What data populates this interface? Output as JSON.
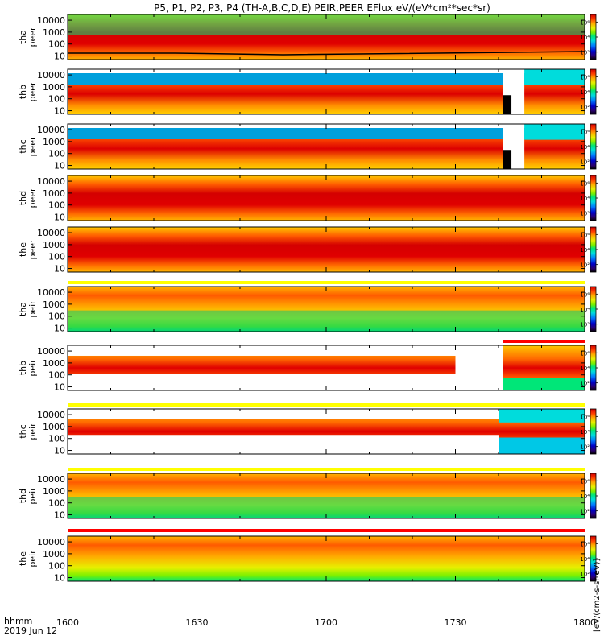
{
  "title": "P5, P1, P2, P3, P4 (TH-A,B,C,D,E) PEIR,PEER EFlux eV/(eV*cm²*sec*sr)",
  "colorbar_unit_label": "[eV/(cm2-s-sr-eV)]",
  "time_axis": {
    "label_line1": "hhmm",
    "label_line2": "2019 Jun 12",
    "ticks": [
      "1600",
      "1630",
      "1700",
      "1730",
      "1800"
    ],
    "tick_minutes": [
      0,
      30,
      60,
      90,
      120
    ],
    "minor_minutes": [
      10,
      20,
      40,
      50,
      70,
      80,
      100,
      110
    ]
  },
  "colorbar_ticks": [
    "10²",
    "10⁴",
    "10⁶"
  ],
  "colorbar_tick_logs": [
    2,
    4,
    6
  ],
  "colorbar_range_log": [
    1,
    7
  ],
  "colors": {
    "scale": [
      "#000000",
      "#2a0070",
      "#0000c8",
      "#0078ff",
      "#00dcdc",
      "#00e678",
      "#78f000",
      "#e6f000",
      "#ffaa00",
      "#ff3c00",
      "#d20000"
    ]
  },
  "chart_data": {
    "type": "heatmap",
    "title": "P5, P1, P2, P3, P4 (TH-A,B,C,D,E) PEIR,PEER EFlux eV/(eV*cm²*sec*sr)",
    "x_units": "UT hhmm, 2019 Jun 12",
    "xlim": [
      "1600",
      "1800"
    ],
    "y_scale": "log",
    "ylim": [
      5,
      30000
    ],
    "y_ticks": [
      "10",
      "100",
      "1000",
      "10000"
    ],
    "z_units": "eV/(eV*cm²*sec*sr)",
    "z_scale": "log",
    "z_ticks": [
      "10²",
      "10⁴",
      "10⁶"
    ],
    "panels": [
      {
        "label": "tha peer",
        "probe": "THEMIS-A",
        "species": "electrons"
      },
      {
        "label": "thb peer",
        "probe": "THEMIS-B",
        "species": "electrons"
      },
      {
        "label": "thc peer",
        "probe": "THEMIS-C",
        "species": "electrons"
      },
      {
        "label": "thd peer",
        "probe": "THEMIS-D",
        "species": "electrons"
      },
      {
        "label": "the peer",
        "probe": "THEMIS-E",
        "species": "electrons"
      },
      {
        "label": "tha peir",
        "probe": "THEMIS-A",
        "species": "ions"
      },
      {
        "label": "thb peir",
        "probe": "THEMIS-B",
        "species": "ions"
      },
      {
        "label": "thc peir",
        "probe": "THEMIS-C",
        "species": "ions"
      },
      {
        "label": "thd peir",
        "probe": "THEMIS-D",
        "species": "ions"
      },
      {
        "label": "the peir",
        "probe": "THEMIS-E",
        "species": "ions"
      }
    ]
  }
}
